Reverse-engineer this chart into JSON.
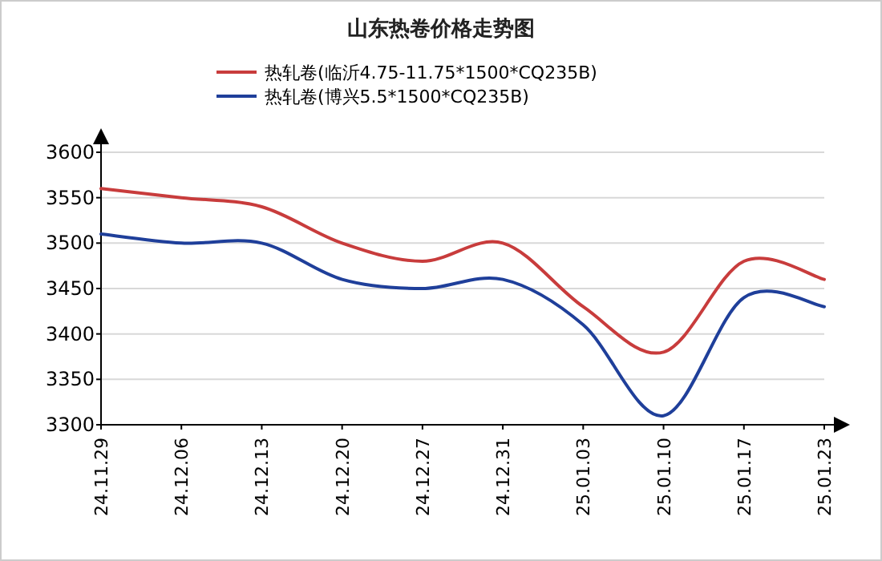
{
  "chart_data": {
    "type": "line",
    "title": "山东热卷价格走势图",
    "categories": [
      "24.11.29",
      "24.12.06",
      "24.12.13",
      "24.12.20",
      "24.12.27",
      "24.12.31",
      "25.01.03",
      "25.01.10",
      "25.01.17",
      "25.01.23"
    ],
    "series": [
      {
        "name": "热轧卷(临沂4.75-11.75*1500*CQ235B)",
        "color": "#c83c3c",
        "values": [
          3560,
          3550,
          3540,
          3500,
          3480,
          3500,
          3430,
          3380,
          3480,
          3460
        ]
      },
      {
        "name": "热轧卷(博兴5.5*1500*CQ235B)",
        "color": "#1f3f9a",
        "values": [
          3510,
          3500,
          3500,
          3460,
          3450,
          3460,
          3410,
          3310,
          3440,
          3430
        ]
      }
    ],
    "ylim": [
      3300,
      3600
    ],
    "yticks": [
      3300,
      3350,
      3400,
      3450,
      3500,
      3550,
      3600
    ],
    "grid": "y",
    "legend": "top",
    "marker": "none",
    "line_style": "solid"
  }
}
